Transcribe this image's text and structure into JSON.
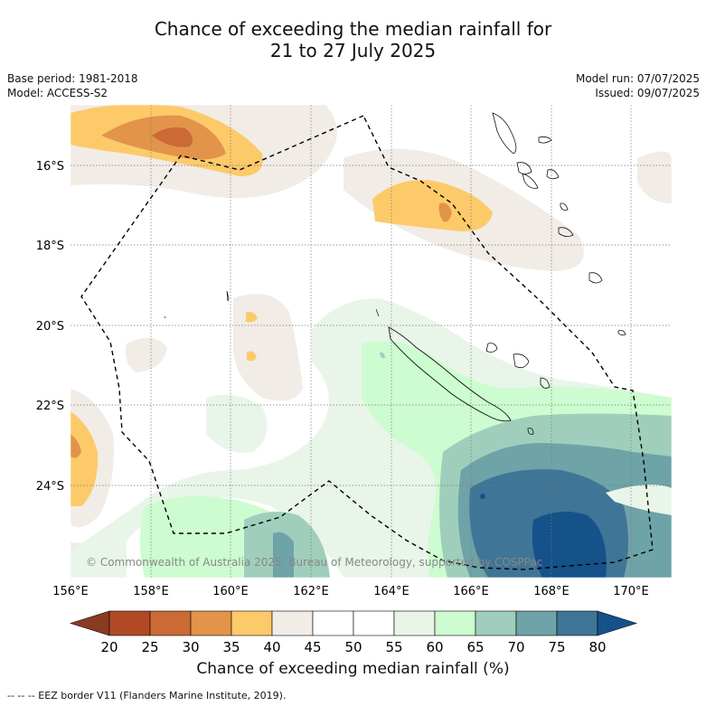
{
  "title_line1": "Chance of exceeding the median rainfall for",
  "title_line2": "21 to 27 July 2025",
  "base_period": "Base period: 1981-2018",
  "model": "Model: ACCESS-S2",
  "model_run": "Model run: 07/07/2025",
  "issued": "Issued: 09/07/2025",
  "copyright": "© Commonwealth of Australia 2025, Bureau of Meteorology, supported by COSPPac",
  "colorbar_title": "Chance of exceeding median rainfall (%)",
  "footer_note": "-- -- -- EEZ border V11 (Flanders Marine Institute, 2019).",
  "lat_labels": [
    "16°S",
    "18°S",
    "20°S",
    "22°S",
    "24°S"
  ],
  "lon_labels": [
    "156°E",
    "158°E",
    "160°E",
    "162°E",
    "164°E",
    "166°E",
    "168°E",
    "170°E"
  ],
  "colorbar": {
    "ticks": [
      "20",
      "25",
      "30",
      "35",
      "40",
      "45",
      "50",
      "55",
      "60",
      "65",
      "70",
      "75",
      "80"
    ],
    "colors": [
      "#8b3a22",
      "#b14a24",
      "#cb6a34",
      "#e2944a",
      "#fdca6a",
      "#f1ece6",
      "#ffffff",
      "#ffffff",
      "#e9f5e8",
      "#cdfcd0",
      "#9fcfbc",
      "#6ea3a8",
      "#3f7596",
      "#15528a"
    ]
  }
}
